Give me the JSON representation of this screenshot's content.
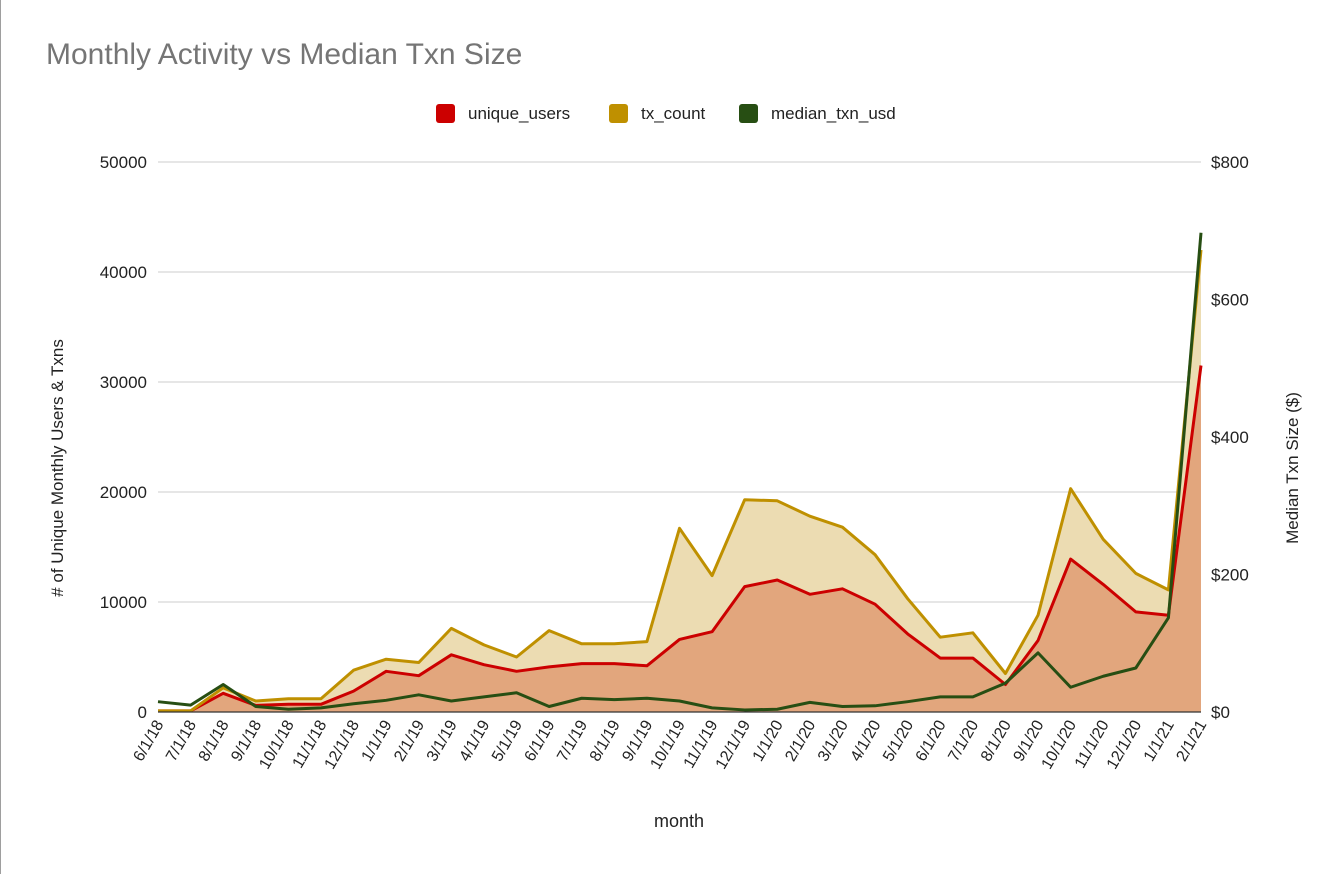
{
  "chart_data": {
    "type": "area",
    "title": "Monthly Activity vs Median Txn Size",
    "xlabel": "month",
    "ylabel_left": "# of Unique Monthly Users & Txns",
    "ylabel_right": "Median Txn Size ($)",
    "legend_position": "top",
    "grid": true,
    "ylim_left": [
      0,
      50000
    ],
    "ylim_right": [
      0,
      800
    ],
    "left_ticks": [
      "0",
      "10000",
      "20000",
      "30000",
      "40000",
      "50000"
    ],
    "right_ticks": [
      "$0",
      "$200",
      "$400",
      "$600",
      "$800"
    ],
    "categories": [
      "6/1/18",
      "7/1/18",
      "8/1/18",
      "9/1/18",
      "10/1/18",
      "11/1/18",
      "12/1/18",
      "1/1/19",
      "2/1/19",
      "3/1/19",
      "4/1/19",
      "5/1/19",
      "6/1/19",
      "7/1/19",
      "8/1/19",
      "9/1/19",
      "10/1/19",
      "11/1/19",
      "12/1/19",
      "1/1/20",
      "2/1/20",
      "3/1/20",
      "4/1/20",
      "5/1/20",
      "6/1/20",
      "7/1/20",
      "8/1/20",
      "9/1/20",
      "10/1/20",
      "11/1/20",
      "12/1/20",
      "1/1/21",
      "2/1/21"
    ],
    "series": [
      {
        "name": "unique_users",
        "axis": "left",
        "style": "area",
        "color": "#cc0000",
        "fill": "#e2a67d",
        "values": [
          100,
          100,
          1700,
          600,
          700,
          700,
          1900,
          3700,
          3300,
          5200,
          4300,
          3700,
          4100,
          4400,
          4400,
          4200,
          6600,
          7300,
          11400,
          12000,
          10700,
          11200,
          9800,
          7100,
          4900,
          4900,
          2500,
          6500,
          13900,
          11600,
          9100,
          8800,
          31500
        ]
      },
      {
        "name": "tx_count",
        "axis": "left",
        "style": "area",
        "color": "#bf9000",
        "fill": "#ecdcb2",
        "values": [
          100,
          100,
          2200,
          1000,
          1200,
          1200,
          3800,
          4800,
          4500,
          7600,
          6100,
          5000,
          7400,
          6200,
          6200,
          6400,
          16700,
          12400,
          19300,
          19200,
          17800,
          16800,
          14300,
          10300,
          6800,
          7200,
          3500,
          8800,
          20300,
          15700,
          12600,
          11100,
          42000
        ]
      },
      {
        "name": "median_txn_usd",
        "axis": "right",
        "style": "line",
        "color": "#274e13",
        "values": [
          15,
          10,
          40,
          8,
          4,
          6,
          12,
          17,
          25,
          16,
          22,
          28,
          8,
          20,
          18,
          20,
          16,
          6,
          3,
          4,
          14,
          8,
          9,
          15,
          22,
          22,
          42,
          86,
          36,
          52,
          64,
          137,
          697
        ]
      }
    ]
  }
}
